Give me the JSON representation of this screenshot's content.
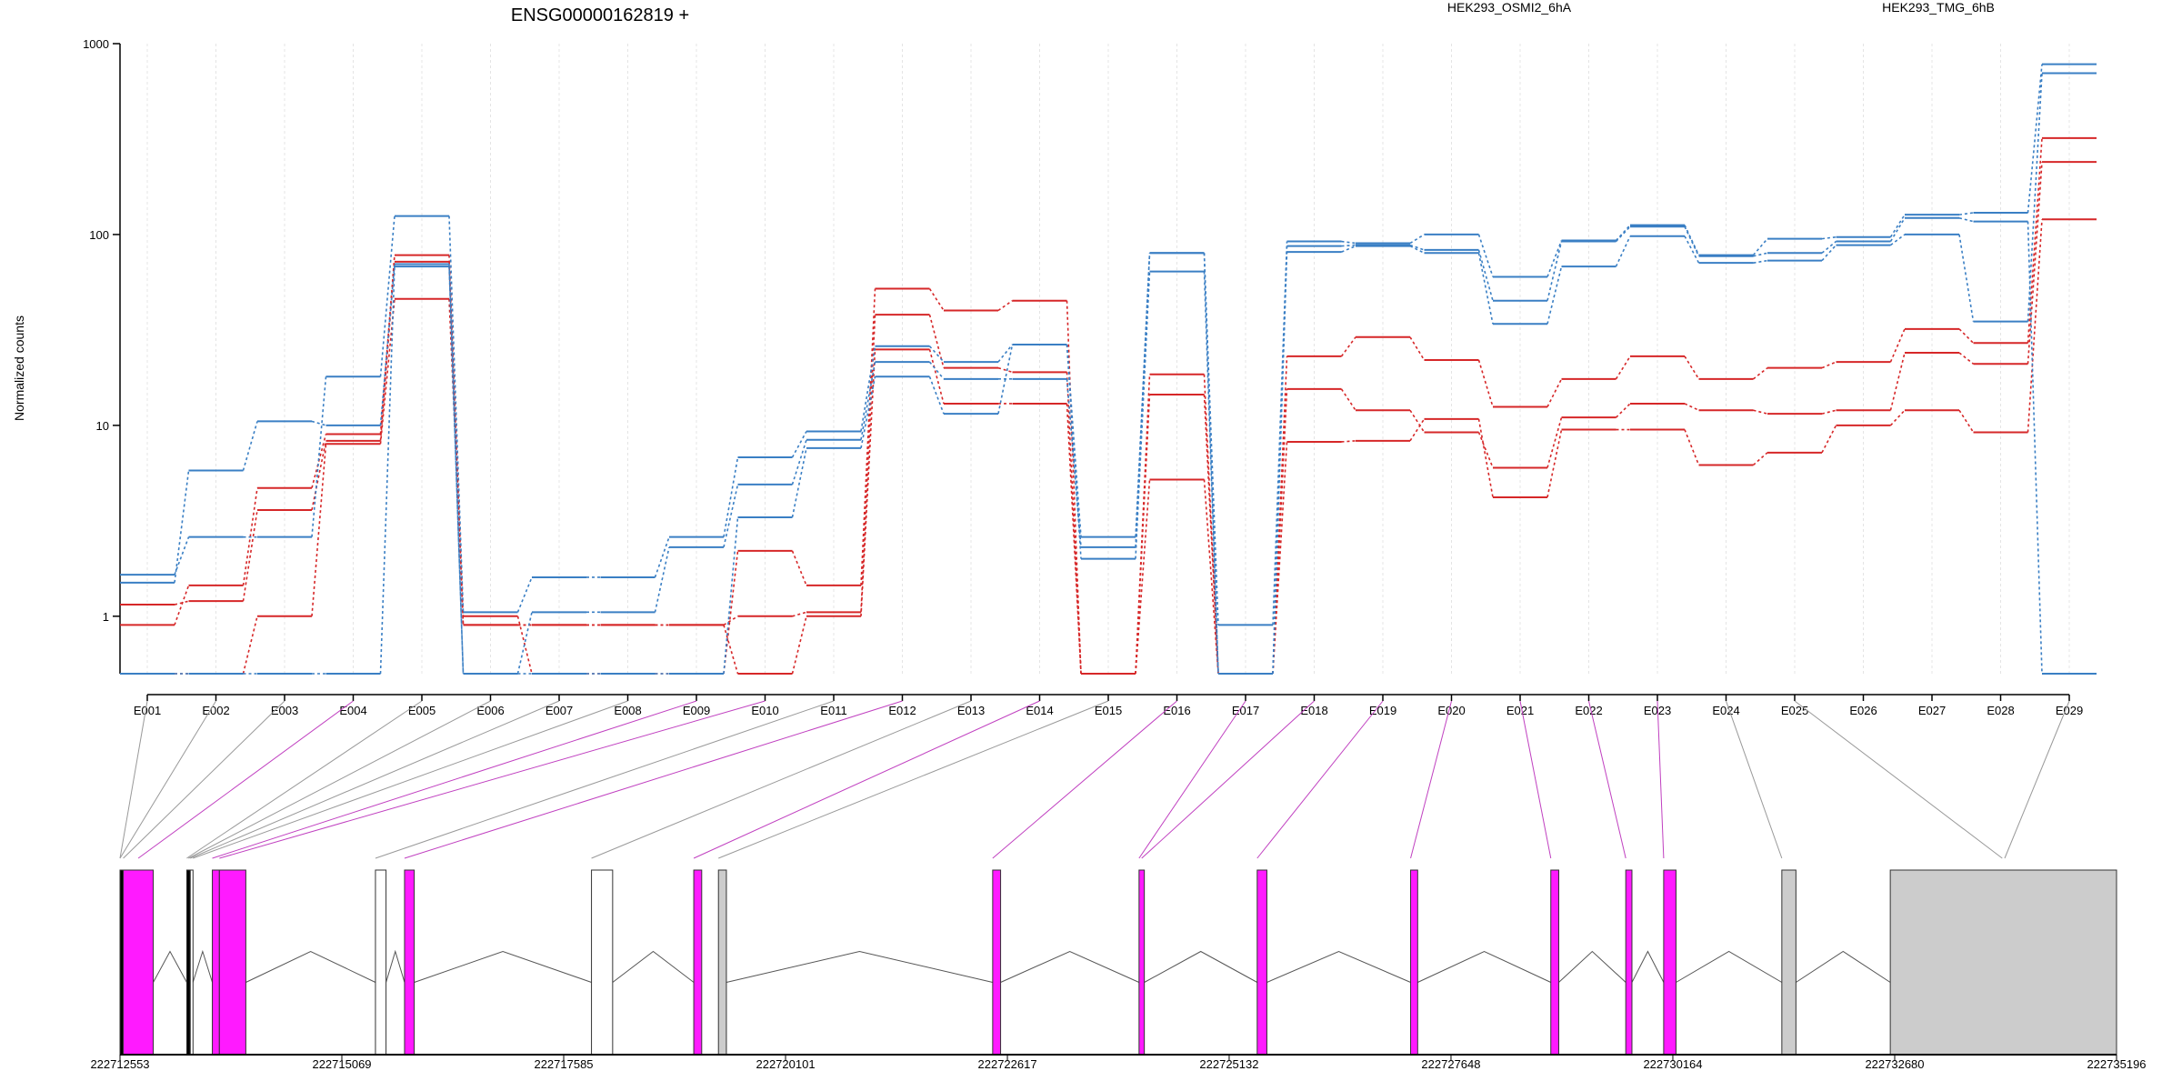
{
  "chart_data": {
    "type": "line",
    "title": "ENSG00000162819 +",
    "ylabel": "Normalized counts",
    "yscale": "log",
    "ylim": [
      0.5,
      1000
    ],
    "yticks": [
      "1",
      "10",
      "100",
      "1000"
    ],
    "yticks_values": [
      1,
      10,
      100,
      1000
    ],
    "categories": [
      "E001",
      "E002",
      "E003",
      "E004",
      "E005",
      "E006",
      "E007",
      "E008",
      "E009",
      "E010",
      "E011",
      "E012",
      "E013",
      "E014",
      "E015",
      "E016",
      "E017",
      "E018",
      "E019",
      "E020",
      "E021",
      "E022",
      "E023",
      "E024",
      "E025",
      "E026",
      "E027",
      "E028",
      "E029"
    ],
    "legend": [
      {
        "name": "HEK293_OSMI2_6hA",
        "color": "#d62728"
      },
      {
        "name": "HEK293_TMG_6hB",
        "color": "#3a7fc4"
      }
    ],
    "series": [
      {
        "group": "HEK293_OSMI2_6hA",
        "color": "#d62728",
        "values": [
          1.15,
          1.2,
          3.6,
          8.3,
          72,
          0.9,
          0.9,
          0.9,
          0.9,
          1.0,
          1.05,
          38,
          20,
          19,
          0.5,
          14.5,
          0.5,
          15.5,
          12,
          9.2,
          6,
          11,
          13,
          12,
          11.5,
          12,
          24,
          21,
          240
        ]
      },
      {
        "group": "HEK293_OSMI2_6hA",
        "color": "#d62728",
        "values": [
          0.9,
          1.45,
          4.7,
          9.0,
          78,
          1.0,
          0.5,
          0.5,
          0.5,
          2.2,
          1.45,
          52,
          40,
          45,
          0.5,
          18.5,
          0.5,
          23,
          29,
          22,
          12.5,
          17.5,
          23,
          17.5,
          20,
          21.5,
          32,
          27,
          320
        ]
      },
      {
        "group": "HEK293_OSMI2_6hA",
        "color": "#d62728",
        "values": [
          0.5,
          0.5,
          1.0,
          8.0,
          46,
          0.9,
          0.9,
          0.9,
          0.9,
          0.5,
          1.0,
          25,
          13,
          13,
          0.5,
          5.2,
          0.5,
          8.2,
          8.3,
          10.8,
          4.2,
          9.5,
          9.5,
          6.2,
          7.2,
          10,
          12,
          9.2,
          120
        ]
      },
      {
        "group": "HEK293_TMG_6hB",
        "color": "#3a7fc4",
        "values": [
          1.65,
          2.6,
          2.6,
          18,
          125,
          1.05,
          1.6,
          1.6,
          2.6,
          6.8,
          9.3,
          26,
          21.5,
          26.5,
          2.6,
          80,
          0.9,
          92,
          90,
          100,
          60,
          93,
          112,
          78,
          95,
          97,
          127,
          130,
          780
        ]
      },
      {
        "group": "HEK293_TMG_6hB",
        "color": "#3a7fc4",
        "values": [
          1.5,
          5.8,
          10.5,
          10,
          70,
          0.5,
          1.05,
          1.05,
          2.3,
          4.9,
          8.4,
          21.5,
          17.5,
          17.5,
          2.3,
          80,
          0.5,
          81,
          87,
          80,
          34,
          68,
          98,
          71,
          73,
          88,
          100,
          35,
          700
        ]
      },
      {
        "group": "HEK293_TMG_6hB",
        "color": "#3a7fc4",
        "values": [
          0.5,
          0.5,
          0.5,
          0.5,
          68,
          0.5,
          0.5,
          0.5,
          0.5,
          3.3,
          7.6,
          18,
          11.5,
          26.5,
          2.0,
          64,
          0.5,
          87,
          88,
          83,
          45,
          92,
          110,
          77,
          80,
          92,
          122,
          117,
          0.5
        ]
      }
    ],
    "gene_model": {
      "ticks": [
        "222712553",
        "222715069",
        "222717585",
        "222720101",
        "222722617",
        "222725132",
        "222727648",
        "222730164",
        "222732680",
        "222735196"
      ],
      "tick_values": [
        222712553,
        222715069,
        222717585,
        222720101,
        222722617,
        222725132,
        222727648,
        222730164,
        222732680,
        222735196
      ],
      "xlim": [
        222712553,
        222735196
      ],
      "features": [
        {
          "start": 222712553,
          "end": 222712590,
          "fill": "#000000"
        },
        {
          "start": 222712590,
          "end": 222712930,
          "fill": "#ff1aff"
        },
        {
          "start": 222713310,
          "end": 222713350,
          "fill": "#000000"
        },
        {
          "start": 222713350,
          "end": 222713380,
          "fill": "#ffffff"
        },
        {
          "start": 222713600,
          "end": 222713680,
          "fill": "#ff1aff"
        },
        {
          "start": 222713680,
          "end": 222713980,
          "fill": "#ff1aff"
        },
        {
          "start": 222715450,
          "end": 222715570,
          "fill": "#ffffff"
        },
        {
          "start": 222715780,
          "end": 222715890,
          "fill": "#ff1aff"
        },
        {
          "start": 222717900,
          "end": 222718140,
          "fill": "#ffffff"
        },
        {
          "start": 222719060,
          "end": 222719150,
          "fill": "#ff1aff"
        },
        {
          "start": 222719340,
          "end": 222719430,
          "fill": "#cccccc"
        },
        {
          "start": 222722450,
          "end": 222722540,
          "fill": "#ff1aff"
        },
        {
          "start": 222724110,
          "end": 222724170,
          "fill": "#ff1aff"
        },
        {
          "start": 222725450,
          "end": 222725560,
          "fill": "#ff1aff"
        },
        {
          "start": 222727190,
          "end": 222727270,
          "fill": "#ff1aff"
        },
        {
          "start": 222728780,
          "end": 222728870,
          "fill": "#ff1aff"
        },
        {
          "start": 222729630,
          "end": 222729700,
          "fill": "#ff1aff"
        },
        {
          "start": 222730060,
          "end": 222730200,
          "fill": "#ff1aff"
        },
        {
          "start": 222731400,
          "end": 222731560,
          "fill": "#cccccc"
        },
        {
          "start": 222732630,
          "end": 222735196,
          "fill": "#cccccc"
        }
      ],
      "introns": [
        [
          222712930,
          222713310
        ],
        [
          222713380,
          222713600
        ],
        [
          222713980,
          222715450
        ],
        [
          222715570,
          222715780
        ],
        [
          222715890,
          222717900
        ],
        [
          222718140,
          222719060
        ],
        [
          222719430,
          222722450
        ],
        [
          222722540,
          222724110
        ],
        [
          222724170,
          222725450
        ],
        [
          222725560,
          222727190
        ],
        [
          222727270,
          222728780
        ],
        [
          222728870,
          222729630
        ],
        [
          222729700,
          222730060
        ],
        [
          222730200,
          222731400
        ],
        [
          222731560,
          222732630
        ]
      ],
      "exon_links": [
        {
          "bin": "E001",
          "pos": 222712553,
          "color": "#999999"
        },
        {
          "bin": "E002",
          "pos": 222712553,
          "color": "#999999"
        },
        {
          "bin": "E003",
          "pos": 222712590,
          "color": "#999999"
        },
        {
          "bin": "E004",
          "pos": 222712760,
          "color": "#c040c0"
        },
        {
          "bin": "E005",
          "pos": 222713310,
          "color": "#999999"
        },
        {
          "bin": "E006",
          "pos": 222713330,
          "color": "#999999"
        },
        {
          "bin": "E007",
          "pos": 222713350,
          "color": "#999999"
        },
        {
          "bin": "E008",
          "pos": 222713380,
          "color": "#999999"
        },
        {
          "bin": "E009",
          "pos": 222713600,
          "color": "#c040c0"
        },
        {
          "bin": "E010",
          "pos": 222713680,
          "color": "#c040c0"
        },
        {
          "bin": "E011",
          "pos": 222715450,
          "color": "#999999"
        },
        {
          "bin": "E012",
          "pos": 222715780,
          "color": "#c040c0"
        },
        {
          "bin": "E013",
          "pos": 222717900,
          "color": "#999999"
        },
        {
          "bin": "E014",
          "pos": 222719060,
          "color": "#c040c0"
        },
        {
          "bin": "E015",
          "pos": 222719340,
          "color": "#999999"
        },
        {
          "bin": "E016",
          "pos": 222722450,
          "color": "#c040c0"
        },
        {
          "bin": "E017",
          "pos": 222724110,
          "color": "#c040c0"
        },
        {
          "bin": "E018",
          "pos": 222724140,
          "color": "#c040c0"
        },
        {
          "bin": "E019",
          "pos": 222725450,
          "color": "#c040c0"
        },
        {
          "bin": "E020",
          "pos": 222727190,
          "color": "#c040c0"
        },
        {
          "bin": "E021",
          "pos": 222728780,
          "color": "#c040c0"
        },
        {
          "bin": "E022",
          "pos": 222729630,
          "color": "#c040c0"
        },
        {
          "bin": "E023",
          "pos": 222730060,
          "color": "#c040c0"
        },
        {
          "bin": "E024",
          "pos": 222731400,
          "color": "#999999"
        },
        {
          "bin": "E025",
          "pos": 222733900,
          "color": "#999999"
        }
      ]
    }
  }
}
